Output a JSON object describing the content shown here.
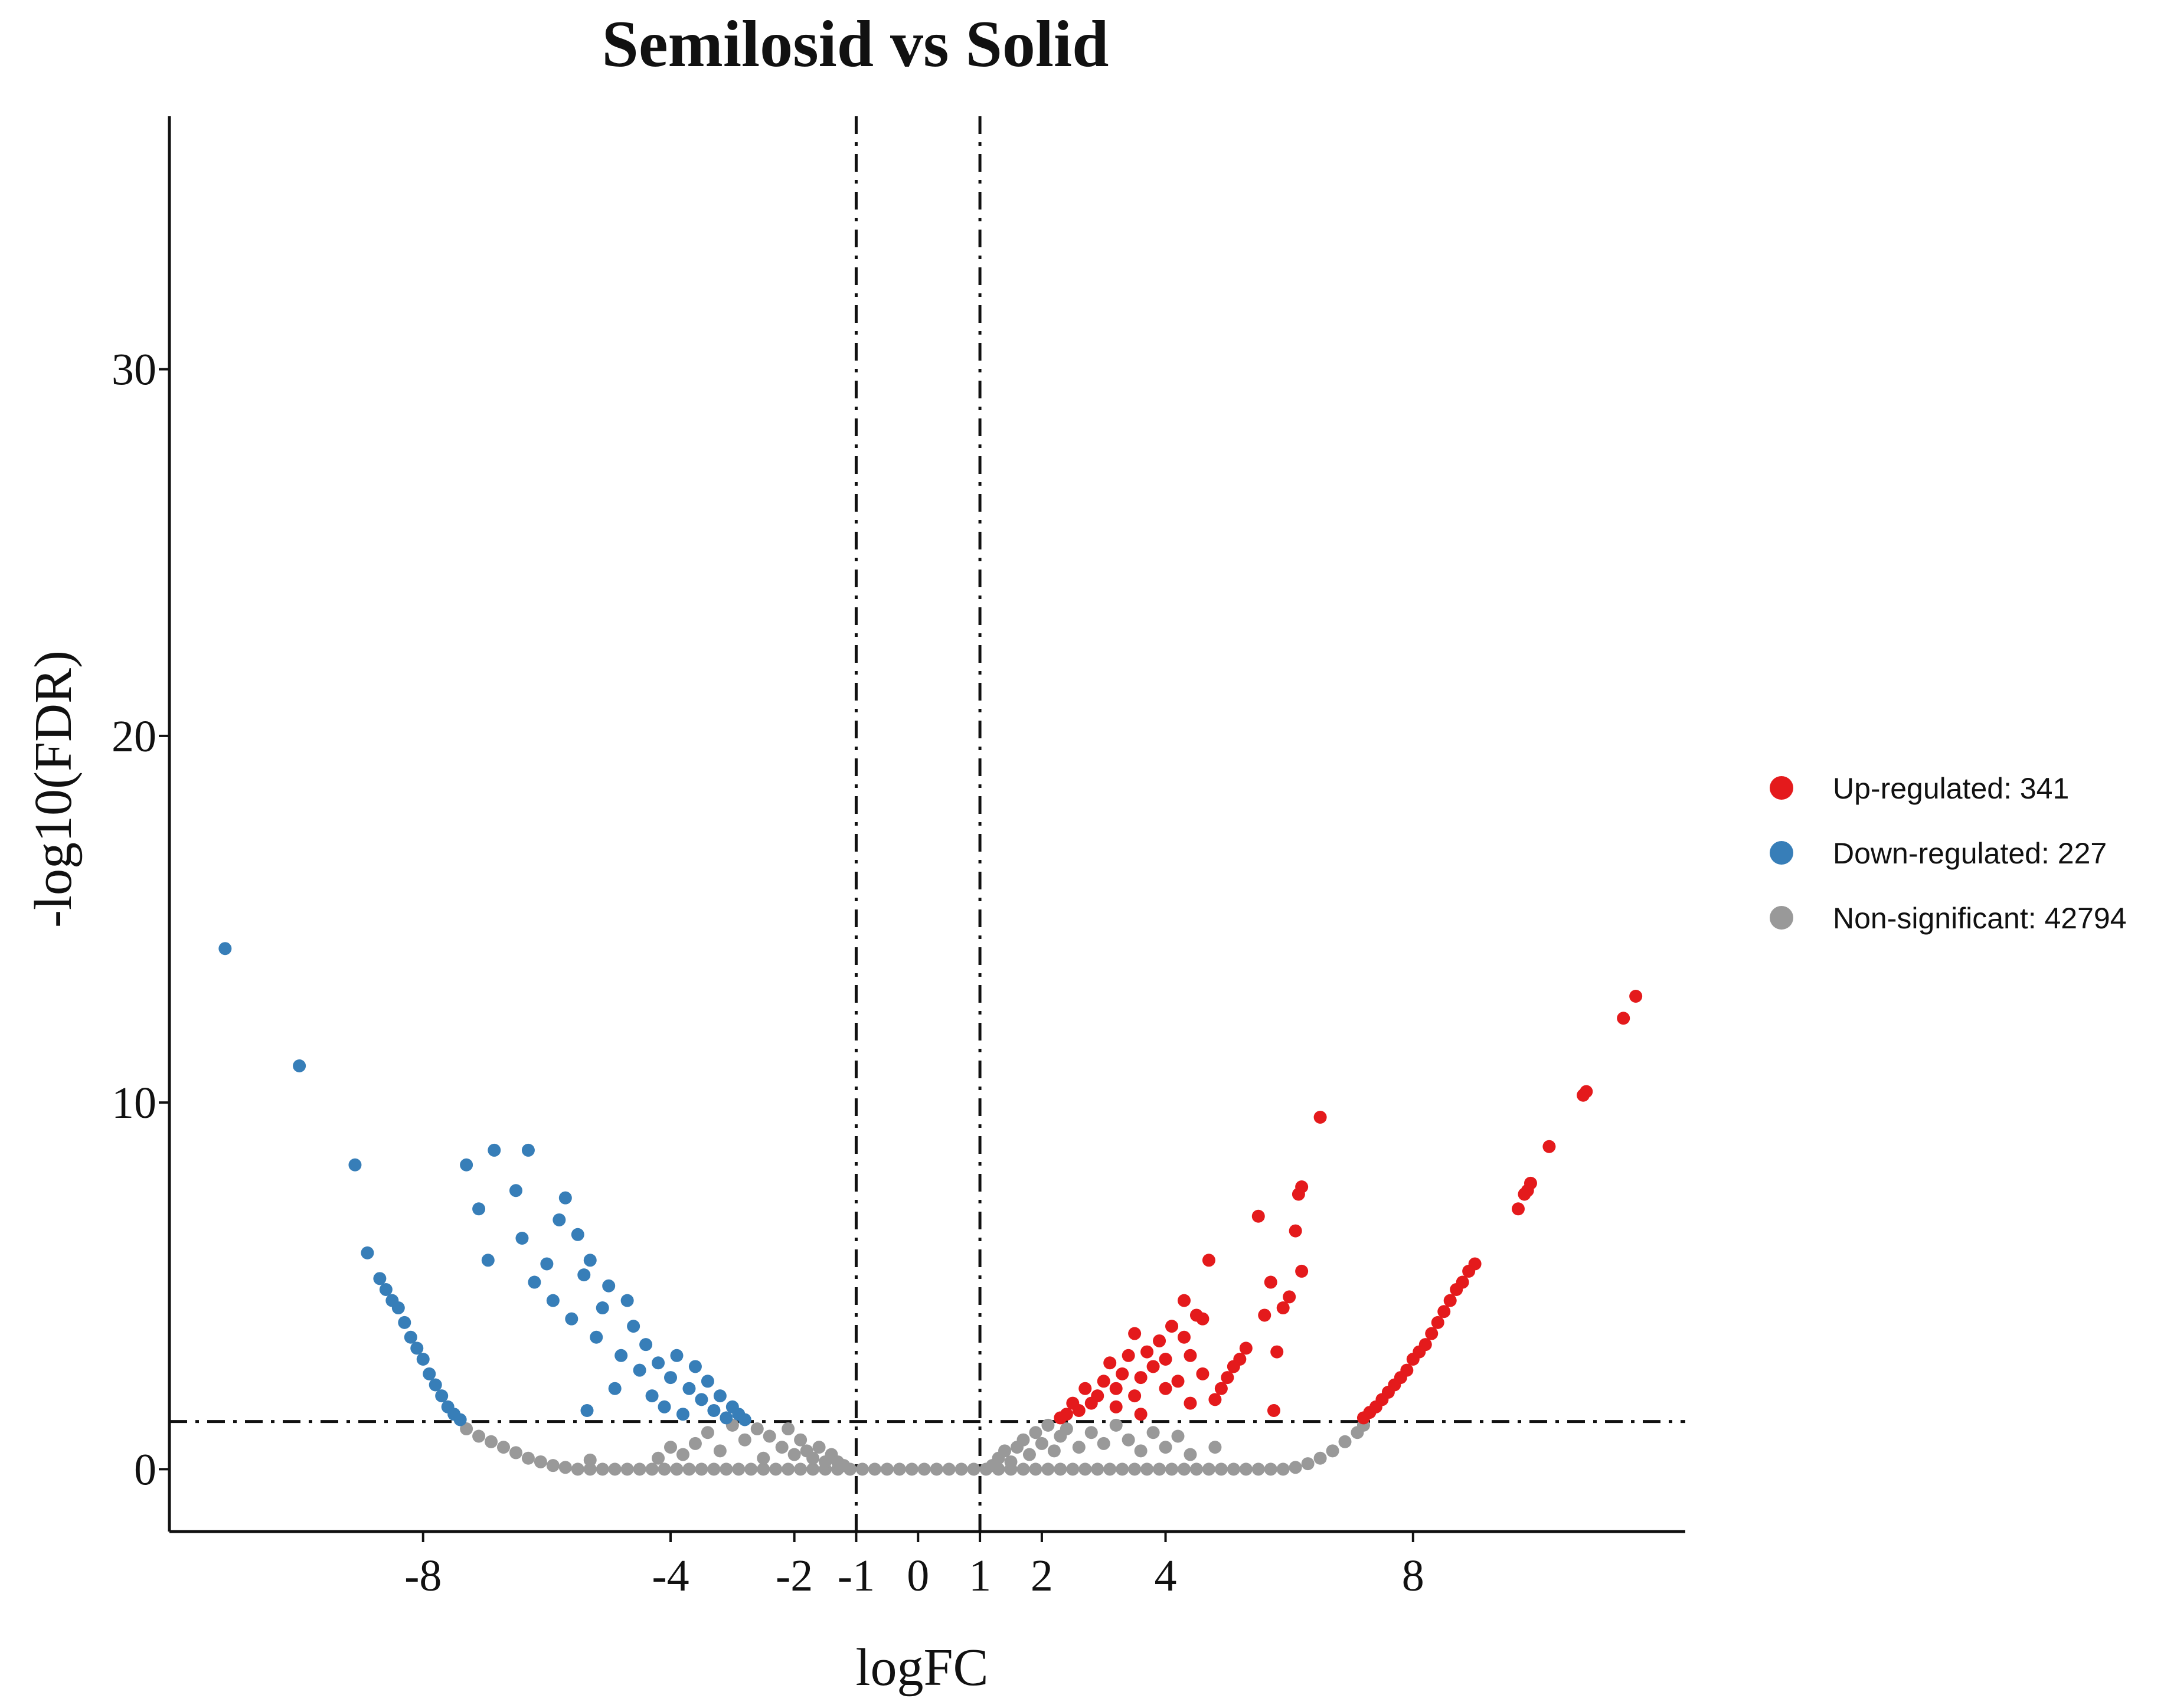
{
  "chart_data": {
    "type": "scatter",
    "subtype": "volcano",
    "title": "Semilosid vs Solid",
    "xlabel": "logFC",
    "ylabel": "-log10(FDR)",
    "xlim": [
      -12.1,
      12.4
    ],
    "ylim": [
      -1.7,
      36.9
    ],
    "x_ticks": [
      {
        "value": -8,
        "label": "-8"
      },
      {
        "value": -4,
        "label": "-4"
      },
      {
        "value": -2,
        "label": "-2"
      },
      {
        "value": -1,
        "label": "-1"
      },
      {
        "value": 0,
        "label": "0"
      },
      {
        "value": 1,
        "label": "1"
      },
      {
        "value": 2,
        "label": "2"
      },
      {
        "value": 4,
        "label": "4"
      },
      {
        "value": 8,
        "label": "8"
      }
    ],
    "y_ticks": [
      {
        "value": 0,
        "label": "0"
      },
      {
        "value": 10,
        "label": "10"
      },
      {
        "value": 20,
        "label": "20"
      },
      {
        "value": 30,
        "label": "30"
      }
    ],
    "thresholds": {
      "logfc": [
        -1,
        1
      ],
      "neg_log10_fdr": 1.3
    },
    "grid": false,
    "legend_position": "right",
    "series": [
      {
        "name": "Up-regulated",
        "count": "341",
        "legend_label": "Up-regulated: 341",
        "color": "#e41a1c",
        "points": [
          [
            11.6,
            12.9
          ],
          [
            11.4,
            12.3
          ],
          [
            10.8,
            10.3
          ],
          [
            10.75,
            10.2
          ],
          [
            10.2,
            8.8
          ],
          [
            9.9,
            7.8
          ],
          [
            9.85,
            7.6
          ],
          [
            9.8,
            7.5
          ],
          [
            9.7,
            7.1
          ],
          [
            9.0,
            5.6
          ],
          [
            8.9,
            5.4
          ],
          [
            8.8,
            5.1
          ],
          [
            8.7,
            4.9
          ],
          [
            8.6,
            4.6
          ],
          [
            8.5,
            4.3
          ],
          [
            8.4,
            4.0
          ],
          [
            8.3,
            3.7
          ],
          [
            8.2,
            3.4
          ],
          [
            8.1,
            3.2
          ],
          [
            8.0,
            3.0
          ],
          [
            7.9,
            2.7
          ],
          [
            7.8,
            2.5
          ],
          [
            7.7,
            2.3
          ],
          [
            7.6,
            2.1
          ],
          [
            7.5,
            1.9
          ],
          [
            7.4,
            1.7
          ],
          [
            7.3,
            1.55
          ],
          [
            7.2,
            1.4
          ],
          [
            6.5,
            9.6
          ],
          [
            6.2,
            7.7
          ],
          [
            6.15,
            7.5
          ],
          [
            6.1,
            6.5
          ],
          [
            6.2,
            5.4
          ],
          [
            6.0,
            4.7
          ],
          [
            5.9,
            4.4
          ],
          [
            5.7,
            5.1
          ],
          [
            5.6,
            4.2
          ],
          [
            5.3,
            3.3
          ],
          [
            5.2,
            3.0
          ],
          [
            5.1,
            2.8
          ],
          [
            5.0,
            2.5
          ],
          [
            5.8,
            3.2
          ],
          [
            5.75,
            1.6
          ],
          [
            5.5,
            6.9
          ],
          [
            4.9,
            2.2
          ],
          [
            4.8,
            1.9
          ],
          [
            4.7,
            5.7
          ],
          [
            4.6,
            4.1
          ],
          [
            4.5,
            4.2
          ],
          [
            4.4,
            3.1
          ],
          [
            4.3,
            4.6
          ],
          [
            4.3,
            3.6
          ],
          [
            4.2,
            2.4
          ],
          [
            4.1,
            3.9
          ],
          [
            4.0,
            3.0
          ],
          [
            4.0,
            2.2
          ],
          [
            3.9,
            3.5
          ],
          [
            3.8,
            2.8
          ],
          [
            3.7,
            3.2
          ],
          [
            3.6,
            2.5
          ],
          [
            3.5,
            3.7
          ],
          [
            3.5,
            2.0
          ],
          [
            3.4,
            3.1
          ],
          [
            3.3,
            2.6
          ],
          [
            3.2,
            2.2
          ],
          [
            3.1,
            2.9
          ],
          [
            3.0,
            2.4
          ],
          [
            2.9,
            2.0
          ],
          [
            2.8,
            1.8
          ],
          [
            2.7,
            2.2
          ],
          [
            2.6,
            1.6
          ],
          [
            2.5,
            1.8
          ],
          [
            2.4,
            1.5
          ],
          [
            2.3,
            1.4
          ],
          [
            3.6,
            1.5
          ],
          [
            3.2,
            1.7
          ],
          [
            4.4,
            1.8
          ],
          [
            4.6,
            2.6
          ]
        ]
      },
      {
        "name": "Down-regulated",
        "count": "227",
        "legend_label": "Down-regulated: 227",
        "color": "#377eb8",
        "points": [
          [
            -11.2,
            14.2
          ],
          [
            -10.0,
            11.0
          ],
          [
            -9.1,
            8.3
          ],
          [
            -8.9,
            5.9
          ],
          [
            -8.7,
            5.2
          ],
          [
            -8.6,
            4.9
          ],
          [
            -8.5,
            4.6
          ],
          [
            -8.4,
            4.4
          ],
          [
            -8.3,
            4.0
          ],
          [
            -8.2,
            3.6
          ],
          [
            -8.1,
            3.3
          ],
          [
            -8.0,
            3.0
          ],
          [
            -7.9,
            2.6
          ],
          [
            -7.8,
            2.3
          ],
          [
            -7.7,
            2.0
          ],
          [
            -7.6,
            1.7
          ],
          [
            -7.5,
            1.5
          ],
          [
            -7.4,
            1.35
          ],
          [
            -7.3,
            8.3
          ],
          [
            -7.1,
            7.1
          ],
          [
            -6.95,
            5.7
          ],
          [
            -6.85,
            8.7
          ],
          [
            -6.3,
            8.7
          ],
          [
            -6.5,
            7.6
          ],
          [
            -6.4,
            6.3
          ],
          [
            -6.2,
            5.1
          ],
          [
            -6.0,
            5.6
          ],
          [
            -5.9,
            4.6
          ],
          [
            -5.8,
            6.8
          ],
          [
            -5.7,
            7.4
          ],
          [
            -5.6,
            4.1
          ],
          [
            -5.5,
            6.4
          ],
          [
            -5.4,
            5.3
          ],
          [
            -5.35,
            1.6
          ],
          [
            -5.3,
            5.7
          ],
          [
            -5.2,
            3.6
          ],
          [
            -5.1,
            4.4
          ],
          [
            -5.0,
            5.0
          ],
          [
            -4.9,
            2.2
          ],
          [
            -4.8,
            3.1
          ],
          [
            -4.7,
            4.6
          ],
          [
            -4.6,
            3.9
          ],
          [
            -4.5,
            2.7
          ],
          [
            -4.4,
            3.4
          ],
          [
            -4.3,
            2.0
          ],
          [
            -4.2,
            2.9
          ],
          [
            -4.1,
            1.7
          ],
          [
            -4.0,
            2.5
          ],
          [
            -3.9,
            3.1
          ],
          [
            -3.8,
            1.5
          ],
          [
            -3.7,
            2.2
          ],
          [
            -3.6,
            2.8
          ],
          [
            -3.5,
            1.9
          ],
          [
            -3.4,
            2.4
          ],
          [
            -3.3,
            1.6
          ],
          [
            -3.2,
            2.0
          ],
          [
            -3.1,
            1.4
          ],
          [
            -3.0,
            1.7
          ],
          [
            -2.9,
            1.5
          ],
          [
            -2.8,
            1.35
          ]
        ]
      },
      {
        "name": "Non-significant",
        "count": "42794",
        "legend_label": "Non-significant: 42794",
        "color": "#999999",
        "points": [
          [
            -7.3,
            1.1
          ],
          [
            -7.1,
            0.9
          ],
          [
            -6.9,
            0.75
          ],
          [
            -6.7,
            0.6
          ],
          [
            -6.5,
            0.45
          ],
          [
            -6.3,
            0.3
          ],
          [
            -6.1,
            0.2
          ],
          [
            -5.9,
            0.1
          ],
          [
            -5.7,
            0.05
          ],
          [
            -5.5,
            0.0
          ],
          [
            -5.3,
            0.0
          ],
          [
            -5.1,
            0.0
          ],
          [
            -4.9,
            0.0
          ],
          [
            -4.7,
            0.0
          ],
          [
            -4.5,
            0.0
          ],
          [
            -4.3,
            0.0
          ],
          [
            -4.1,
            0.0
          ],
          [
            -3.9,
            0.0
          ],
          [
            -3.7,
            0.0
          ],
          [
            -3.5,
            0.0
          ],
          [
            -3.3,
            0.0
          ],
          [
            -3.1,
            0.0
          ],
          [
            -2.9,
            0.0
          ],
          [
            -2.7,
            0.0
          ],
          [
            -2.5,
            0.0
          ],
          [
            -2.3,
            0.0
          ],
          [
            -2.1,
            0.0
          ],
          [
            -1.9,
            0.0
          ],
          [
            -1.7,
            0.0
          ],
          [
            -1.5,
            0.0
          ],
          [
            -1.3,
            0.0
          ],
          [
            -1.1,
            0.0
          ],
          [
            -0.9,
            0.0
          ],
          [
            -0.7,
            0.0
          ],
          [
            -0.5,
            0.0
          ],
          [
            -0.3,
            0.0
          ],
          [
            -0.1,
            0.0
          ],
          [
            0.1,
            0.0
          ],
          [
            0.3,
            0.0
          ],
          [
            0.5,
            0.0
          ],
          [
            0.7,
            0.0
          ],
          [
            0.9,
            0.0
          ],
          [
            1.1,
            0.0
          ],
          [
            1.3,
            0.0
          ],
          [
            1.5,
            0.0
          ],
          [
            1.7,
            0.0
          ],
          [
            1.9,
            0.0
          ],
          [
            2.1,
            0.0
          ],
          [
            2.3,
            0.0
          ],
          [
            2.5,
            0.0
          ],
          [
            2.7,
            0.0
          ],
          [
            2.9,
            0.0
          ],
          [
            3.1,
            0.0
          ],
          [
            3.3,
            0.0
          ],
          [
            3.5,
            0.0
          ],
          [
            3.7,
            0.0
          ],
          [
            3.9,
            0.0
          ],
          [
            4.1,
            0.0
          ],
          [
            4.3,
            0.0
          ],
          [
            4.5,
            0.0
          ],
          [
            4.7,
            0.0
          ],
          [
            4.9,
            0.0
          ],
          [
            5.1,
            0.0
          ],
          [
            5.3,
            0.0
          ],
          [
            5.5,
            0.0
          ],
          [
            5.7,
            0.0
          ],
          [
            5.9,
            0.0
          ],
          [
            6.1,
            0.05
          ],
          [
            6.3,
            0.15
          ],
          [
            6.5,
            0.3
          ],
          [
            6.7,
            0.5
          ],
          [
            6.9,
            0.75
          ],
          [
            7.1,
            1.0
          ],
          [
            7.2,
            1.2
          ],
          [
            -3.8,
            0.4
          ],
          [
            -3.6,
            0.7
          ],
          [
            -3.4,
            1.0
          ],
          [
            -3.2,
            0.5
          ],
          [
            -3.0,
            1.2
          ],
          [
            -2.8,
            0.8
          ],
          [
            -2.6,
            1.1
          ],
          [
            -2.5,
            0.3
          ],
          [
            -2.4,
            0.9
          ],
          [
            -2.2,
            0.6
          ],
          [
            -2.1,
            1.1
          ],
          [
            -2.0,
            0.4
          ],
          [
            -1.9,
            0.8
          ],
          [
            -1.8,
            0.5
          ],
          [
            -1.7,
            0.3
          ],
          [
            -1.6,
            0.6
          ],
          [
            -1.5,
            0.2
          ],
          [
            -1.4,
            0.4
          ],
          [
            -1.3,
            0.2
          ],
          [
            -1.2,
            0.1
          ],
          [
            1.2,
            0.1
          ],
          [
            1.3,
            0.3
          ],
          [
            1.4,
            0.5
          ],
          [
            1.5,
            0.2
          ],
          [
            1.6,
            0.6
          ],
          [
            1.7,
            0.8
          ],
          [
            1.8,
            0.4
          ],
          [
            1.9,
            1.0
          ],
          [
            2.0,
            0.7
          ],
          [
            2.1,
            1.2
          ],
          [
            2.2,
            0.5
          ],
          [
            2.3,
            0.9
          ],
          [
            2.4,
            1.1
          ],
          [
            2.6,
            0.6
          ],
          [
            2.8,
            1.0
          ],
          [
            3.0,
            0.7
          ],
          [
            3.2,
            1.2
          ],
          [
            3.4,
            0.8
          ],
          [
            3.6,
            0.5
          ],
          [
            3.8,
            1.0
          ],
          [
            4.0,
            0.6
          ],
          [
            4.2,
            0.9
          ],
          [
            4.4,
            0.4
          ],
          [
            4.8,
            0.6
          ],
          [
            -4.0,
            0.6
          ],
          [
            -4.2,
            0.3
          ],
          [
            -5.3,
            0.25
          ]
        ]
      }
    ]
  }
}
